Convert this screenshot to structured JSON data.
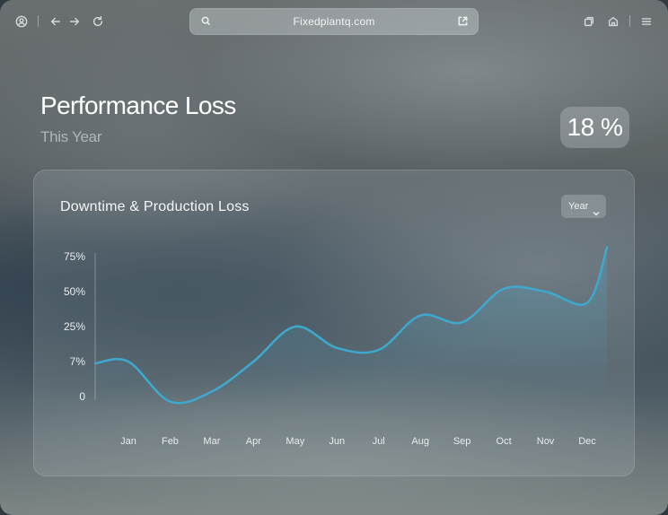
{
  "browser": {
    "url": "Fixedplantq.com",
    "icons": {
      "profile": "profile-icon",
      "back": "arrow-left-icon",
      "forward": "arrow-right-icon",
      "reload": "reload-icon",
      "search": "search-icon",
      "share": "share-icon",
      "tabs": "tabs-icon",
      "extensions": "extensions-icon",
      "menu": "menu-icon"
    }
  },
  "header": {
    "title": "Performance Loss",
    "subtitle": "This Year",
    "percent": "18 %"
  },
  "card": {
    "title": "Downtime & Production Loss",
    "period": "Year"
  },
  "colors": {
    "line": "#3ea9cf",
    "area_top": "#4aa6c6"
  },
  "chart_data": {
    "type": "area",
    "title": "Downtime & Production Loss",
    "xlabel": "",
    "ylabel": "",
    "y_tick_labels": [
      "0",
      "7%",
      "25%",
      "50%",
      "75%"
    ],
    "categories": [
      "Jan",
      "Feb",
      "Mar",
      "Apr",
      "May",
      "Jun",
      "Jul",
      "Aug",
      "Sep",
      "Oct",
      "Nov",
      "Dec"
    ],
    "series": [
      {
        "values": [
          7,
          -1,
          1,
          7,
          25,
          14,
          13,
          33,
          28,
          52,
          50,
          42
        ]
      }
    ],
    "grid": false,
    "legend": "none"
  }
}
